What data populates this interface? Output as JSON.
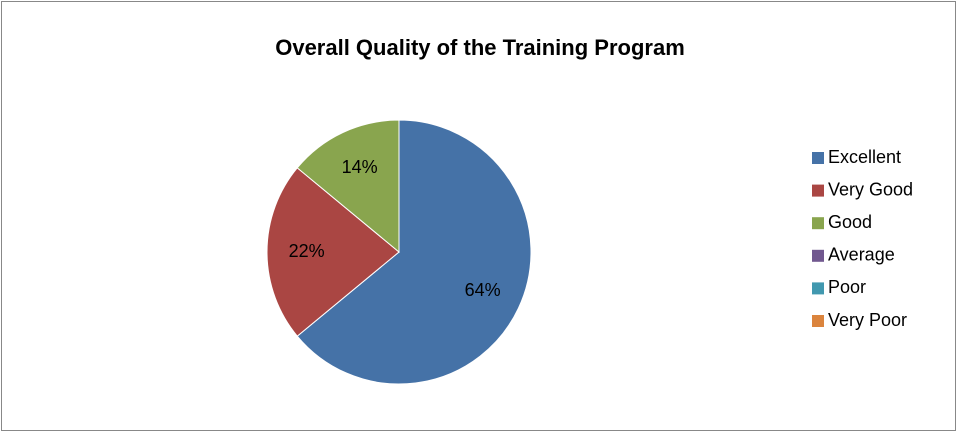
{
  "chart_data": {
    "type": "pie",
    "title": "Overall Quality of the Training Program",
    "categories": [
      "Excellent",
      "Very Good",
      "Good",
      "Average",
      "Poor",
      "Very Poor"
    ],
    "values": [
      64,
      22,
      14,
      0,
      0,
      0
    ],
    "value_labels": [
      "64%",
      "22%",
      "14%",
      null,
      null,
      null
    ],
    "colors": [
      "#4572a7",
      "#aa4643",
      "#89a54e",
      "#71588f",
      "#4198af",
      "#db843d"
    ],
    "legend": "right"
  }
}
